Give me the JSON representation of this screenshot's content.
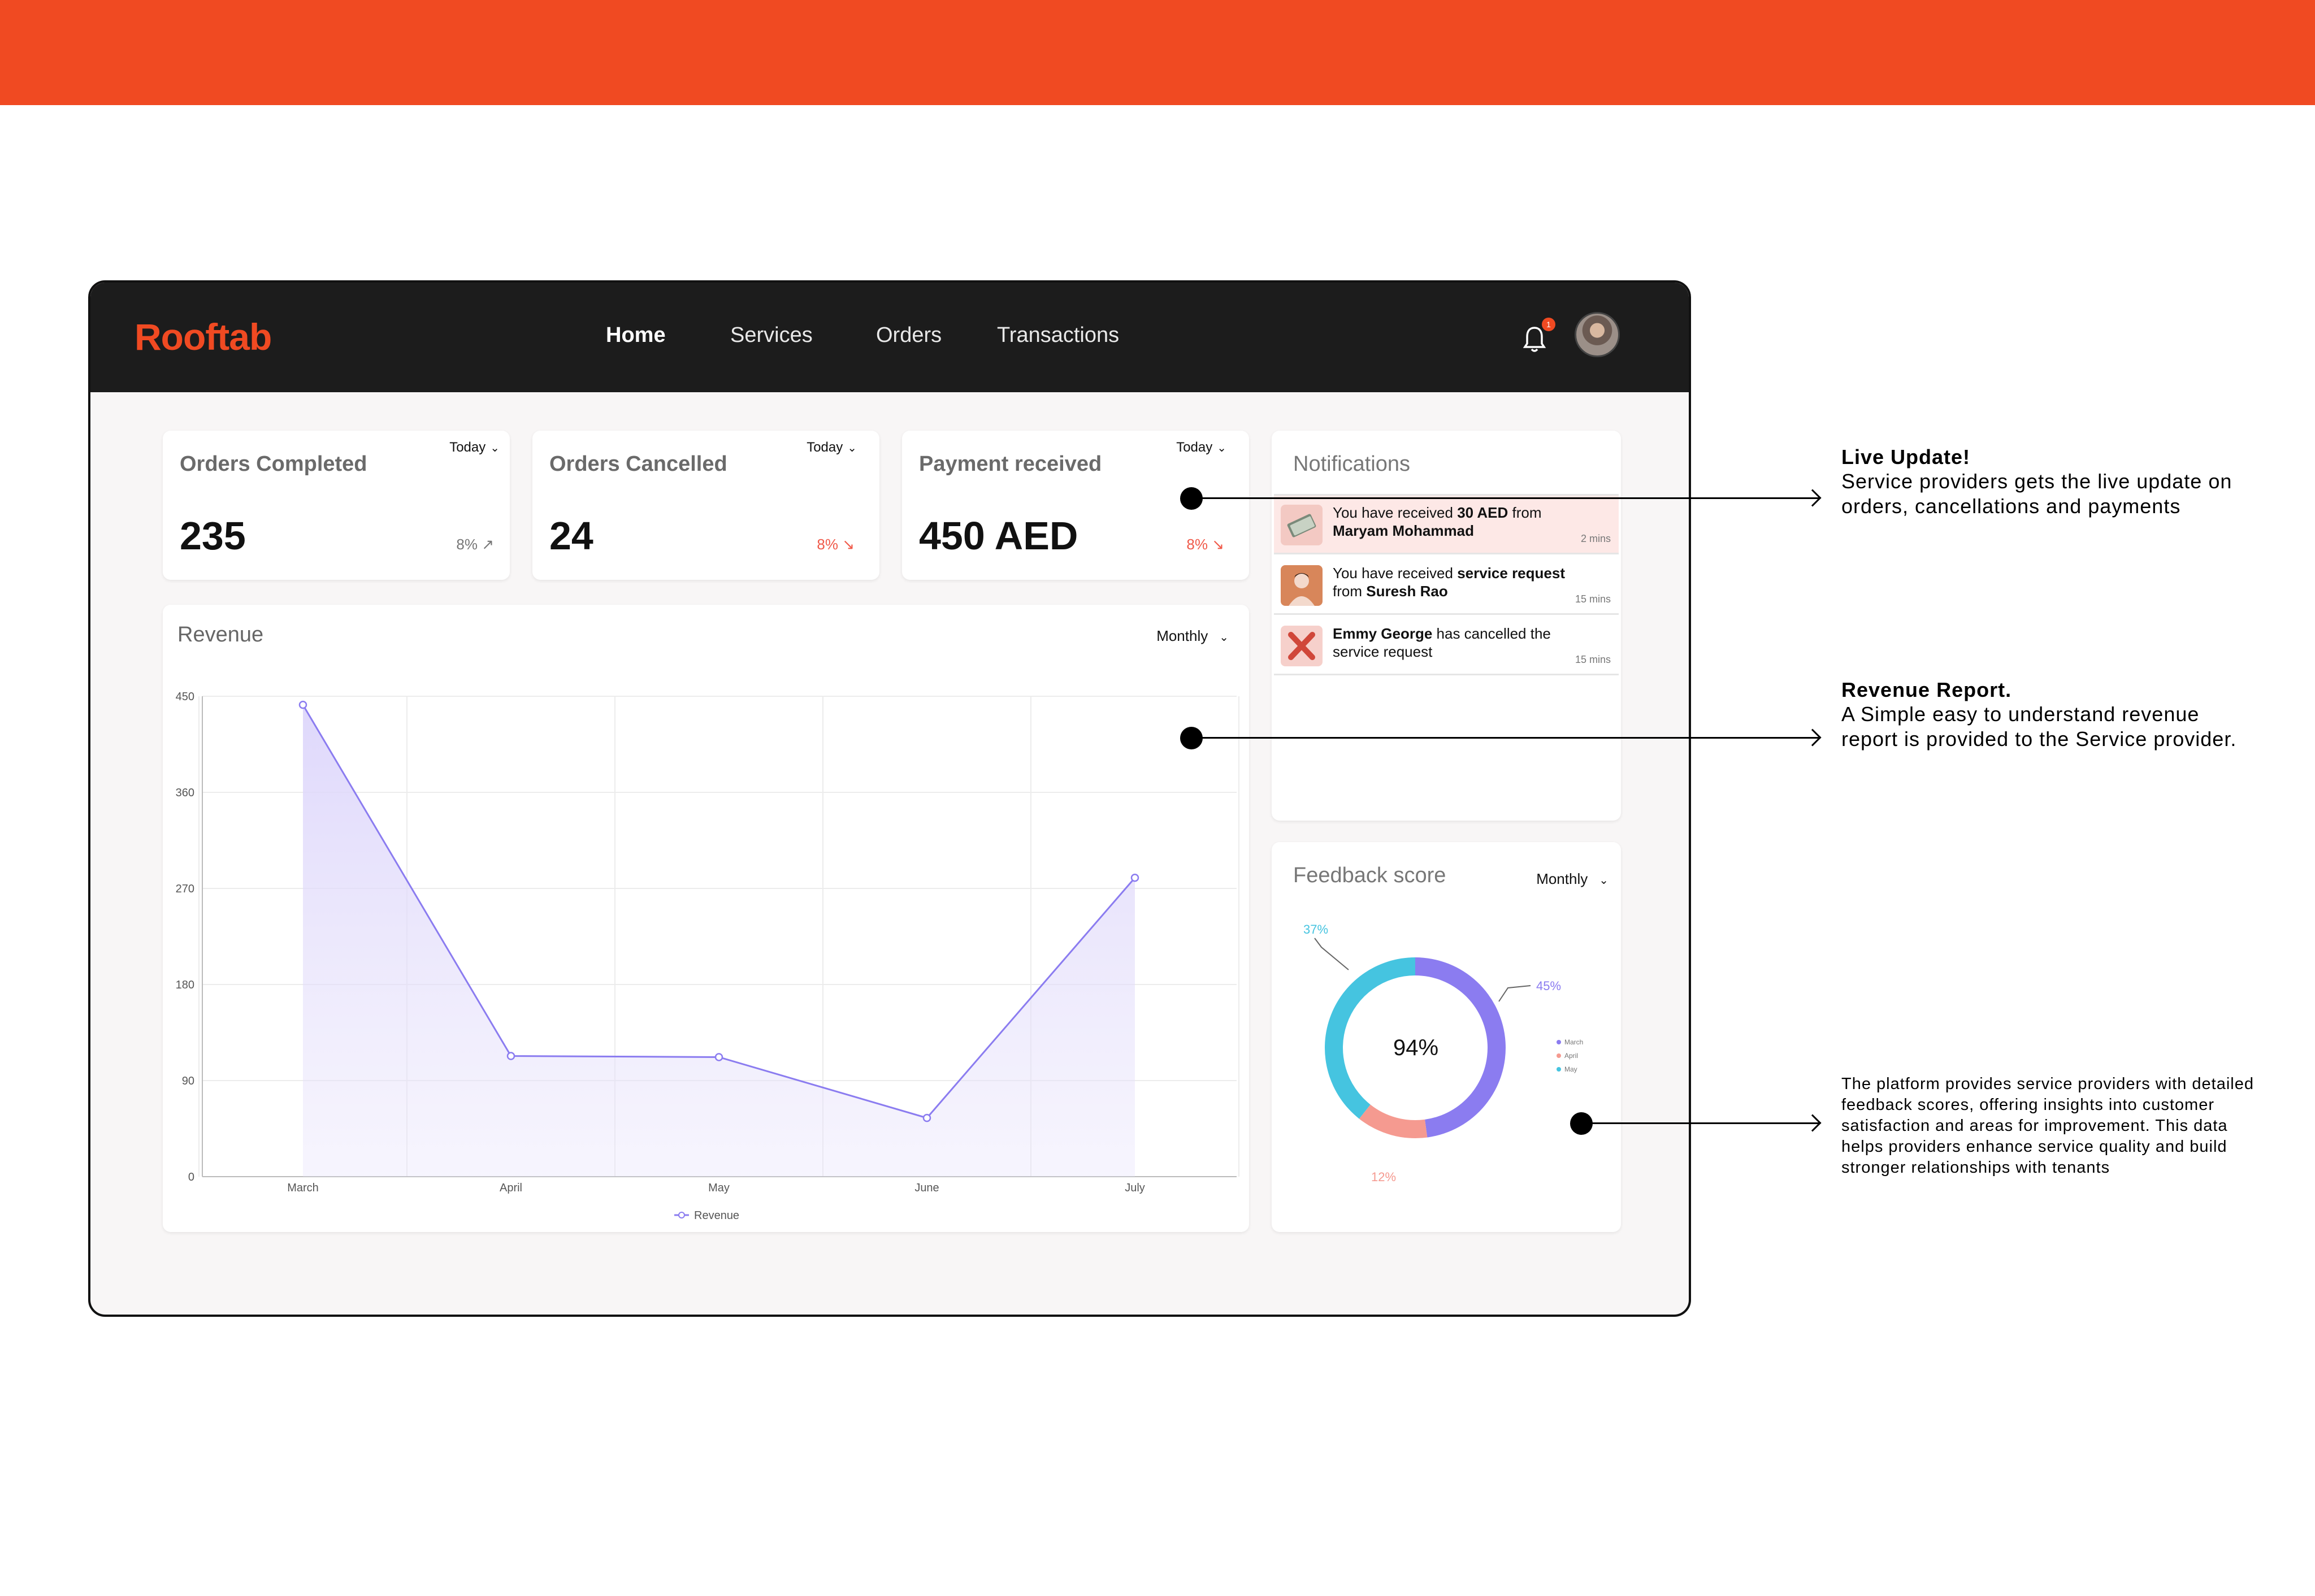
{
  "app": {
    "logo": "Rooftab"
  },
  "nav": {
    "items": [
      "Home",
      "Services",
      "Orders",
      "Transactions"
    ],
    "active": "Home"
  },
  "header": {
    "notification_badge": "1"
  },
  "stats": [
    {
      "title": "Orders Completed",
      "value": "235",
      "period": "Today",
      "delta": "8%",
      "trend": "up"
    },
    {
      "title": "Orders Cancelled",
      "value": "24",
      "period": "Today",
      "delta": "8%",
      "trend": "down"
    },
    {
      "title": "Payment received",
      "value": "450 AED",
      "period": "Today",
      "delta": "8%",
      "trend": "down"
    }
  ],
  "notifications": {
    "title": "Notifications",
    "items": [
      {
        "pre": "You have received ",
        "bold": "30 AED",
        "mid": " from ",
        "bold2": "Maryam Mohammad",
        "post": "",
        "time": "2 mins",
        "icon": "money-icon",
        "highlight": true
      },
      {
        "pre": "You have received ",
        "bold": "service request",
        "mid": " from ",
        "bold2": "Suresh Rao",
        "post": "",
        "time": "15 mins",
        "icon": "person-avatar-icon",
        "highlight": false
      },
      {
        "pre": "",
        "bold": "Emmy George",
        "mid": " has cancelled the service request",
        "bold2": "",
        "post": "",
        "time": "15 mins",
        "icon": "cross-icon",
        "highlight": false
      }
    ]
  },
  "revenue": {
    "title": "Revenue",
    "period": "Monthly",
    "chart_data": {
      "type": "area",
      "categories": [
        "March",
        "April",
        "May",
        "June",
        "July"
      ],
      "series": [
        {
          "name": "Revenue",
          "values": [
            442,
            113,
            112,
            55,
            280
          ]
        }
      ],
      "yticks": [
        "0",
        "90",
        "180",
        "270",
        "360",
        "450"
      ],
      "ylim": [
        0,
        450
      ],
      "grid": true,
      "legend": "bottom",
      "colors": {
        "line": "#8b7cf0",
        "fill": "#e7e2fb"
      }
    }
  },
  "feedback": {
    "title": "Feedback score",
    "period": "Monthly",
    "center_label": "94%",
    "chart_data": {
      "type": "pie",
      "categories": [
        "March",
        "April",
        "May"
      ],
      "values": [
        45,
        12,
        37
      ],
      "labels": [
        "45%",
        "12%",
        "37%"
      ],
      "colors": [
        "#8b7cf0",
        "#f59a90",
        "#45c4e0"
      ],
      "legend": "right"
    }
  },
  "annotations": [
    {
      "title": "Live Update!",
      "body": "Service providers gets the live update on orders, cancellations and payments"
    },
    {
      "title": "Revenue Report.",
      "body": "A Simple easy to understand revenue report is provided to the Service provider."
    },
    {
      "title": "",
      "body": "The platform provides service providers with detailed feedback scores, offering insights into customer satisfaction and areas for improvement. This data helps providers enhance service quality and build stronger relationships with tenants"
    }
  ]
}
